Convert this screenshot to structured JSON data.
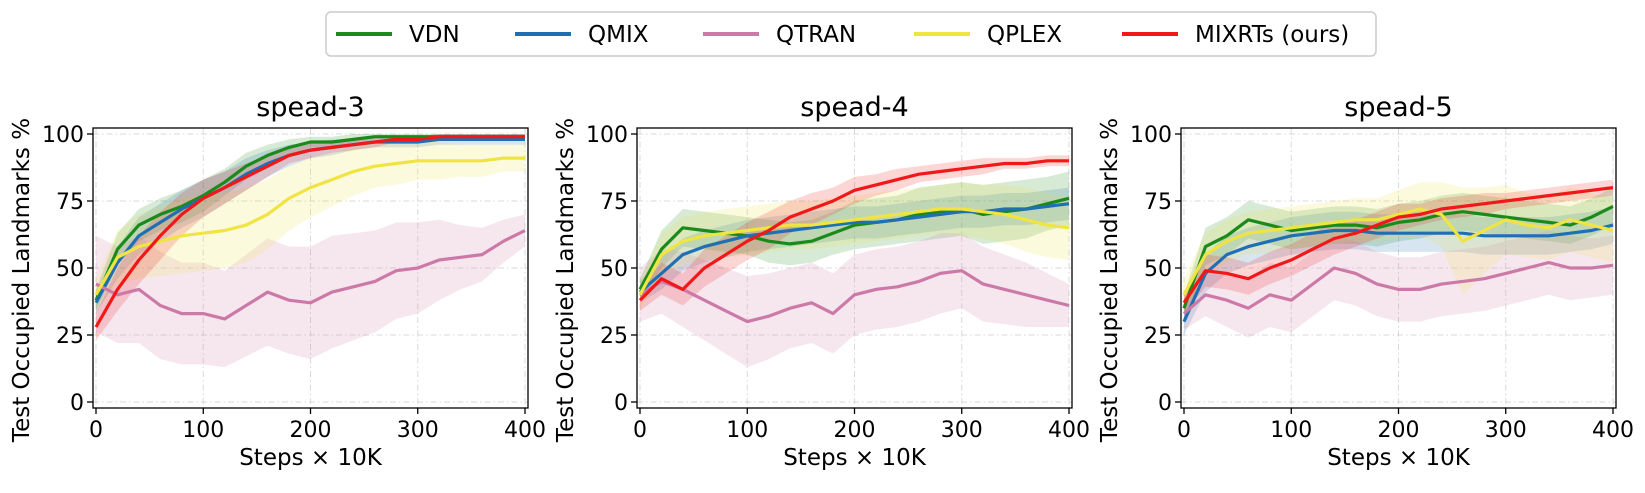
{
  "legend": {
    "placement": "top-center",
    "entries": [
      {
        "label": "VDN",
        "color": "#1a8a1a"
      },
      {
        "label": "QMIX",
        "color": "#1f6fb4"
      },
      {
        "label": "QTRAN",
        "color": "#cc79a7"
      },
      {
        "label": "QPLEX",
        "color": "#f0e442"
      },
      {
        "label": "MIXRTs (ours)",
        "color": "#f01818"
      }
    ]
  },
  "chart_data": [
    {
      "type": "line",
      "title": "spead-3",
      "xlabel": "Steps × 10K",
      "ylabel": "Test Occupied Landmarks %",
      "xlim": [
        0,
        400
      ],
      "ylim": [
        0,
        100
      ],
      "xticks": [
        0,
        100,
        200,
        300,
        400
      ],
      "yticks": [
        0,
        25,
        50,
        75,
        100
      ],
      "grid": true,
      "x": [
        0,
        20,
        40,
        60,
        80,
        100,
        120,
        140,
        160,
        180,
        200,
        220,
        240,
        260,
        280,
        300,
        320,
        340,
        360,
        380,
        400
      ],
      "series": [
        {
          "name": "VDN",
          "color": "#1a8a1a",
          "values": [
            38,
            57,
            66,
            70,
            73,
            77,
            82,
            88,
            92,
            95,
            97,
            97,
            98,
            99,
            99,
            99,
            99,
            99,
            99,
            99,
            99
          ],
          "band": [
            4,
            6,
            6,
            6,
            6,
            6,
            5,
            5,
            4,
            3,
            2,
            2,
            2,
            1,
            1,
            1,
            1,
            1,
            1,
            1,
            1
          ]
        },
        {
          "name": "QMIX",
          "color": "#1f6fb4",
          "values": [
            37,
            52,
            62,
            67,
            72,
            76,
            80,
            85,
            89,
            92,
            94,
            95,
            96,
            97,
            97,
            97,
            98,
            98,
            98,
            98,
            98
          ],
          "band": [
            4,
            6,
            7,
            7,
            7,
            7,
            6,
            6,
            5,
            4,
            3,
            3,
            2,
            2,
            2,
            2,
            2,
            2,
            2,
            2,
            2
          ]
        },
        {
          "name": "QTRAN",
          "color": "#cc79a7",
          "values": [
            44,
            40,
            42,
            36,
            33,
            33,
            31,
            36,
            41,
            38,
            37,
            41,
            43,
            45,
            49,
            50,
            53,
            54,
            55,
            60,
            64
          ],
          "band": [
            18,
            18,
            20,
            20,
            19,
            19,
            18,
            19,
            20,
            20,
            21,
            21,
            20,
            19,
            18,
            17,
            15,
            12,
            10,
            8,
            6
          ]
        },
        {
          "name": "QPLEX",
          "color": "#f0e442",
          "values": [
            40,
            54,
            58,
            60,
            62,
            63,
            64,
            66,
            70,
            76,
            80,
            83,
            86,
            88,
            89,
            90,
            90,
            90,
            90,
            91,
            91
          ],
          "band": [
            6,
            10,
            12,
            13,
            14,
            14,
            14,
            14,
            13,
            12,
            11,
            10,
            9,
            8,
            8,
            7,
            7,
            6,
            6,
            5,
            5
          ]
        },
        {
          "name": "MIXRTs (ours)",
          "color": "#f01818",
          "values": [
            28,
            42,
            53,
            62,
            70,
            76,
            80,
            84,
            88,
            92,
            94,
            95,
            96,
            97,
            98,
            98,
            99,
            99,
            99,
            99,
            99
          ],
          "band": [
            5,
            8,
            9,
            9,
            8,
            7,
            6,
            5,
            4,
            3,
            3,
            2,
            2,
            2,
            1,
            1,
            1,
            1,
            1,
            1,
            1
          ]
        }
      ]
    },
    {
      "type": "line",
      "title": "spead-4",
      "xlabel": "Steps × 10K",
      "ylabel": "Test Occupied Landmarks %",
      "xlim": [
        0,
        400
      ],
      "ylim": [
        0,
        100
      ],
      "xticks": [
        0,
        100,
        200,
        300,
        400
      ],
      "yticks": [
        0,
        25,
        50,
        75,
        100
      ],
      "grid": true,
      "x": [
        0,
        20,
        40,
        60,
        80,
        100,
        120,
        140,
        160,
        180,
        200,
        220,
        240,
        260,
        280,
        300,
        320,
        340,
        360,
        380,
        400
      ],
      "series": [
        {
          "name": "VDN",
          "color": "#1a8a1a",
          "values": [
            42,
            57,
            65,
            64,
            63,
            62,
            60,
            59,
            60,
            63,
            66,
            67,
            68,
            70,
            71,
            72,
            70,
            71,
            72,
            74,
            76
          ],
          "band": [
            4,
            7,
            7,
            7,
            7,
            7,
            8,
            8,
            8,
            8,
            9,
            9,
            9,
            10,
            10,
            10,
            11,
            11,
            11,
            10,
            10
          ]
        },
        {
          "name": "QMIX",
          "color": "#1f6fb4",
          "values": [
            41,
            48,
            55,
            58,
            60,
            62,
            63,
            64,
            65,
            66,
            67,
            67,
            68,
            69,
            70,
            71,
            71,
            72,
            72,
            73,
            74
          ],
          "band": [
            4,
            6,
            6,
            6,
            6,
            6,
            6,
            6,
            6,
            6,
            6,
            6,
            6,
            6,
            6,
            6,
            6,
            6,
            6,
            6,
            6
          ]
        },
        {
          "name": "QTRAN",
          "color": "#cc79a7",
          "values": [
            40,
            45,
            42,
            38,
            34,
            30,
            32,
            35,
            37,
            33,
            40,
            42,
            43,
            45,
            48,
            49,
            44,
            42,
            40,
            38,
            36
          ],
          "band": [
            10,
            12,
            14,
            15,
            16,
            17,
            16,
            15,
            15,
            15,
            15,
            15,
            15,
            15,
            15,
            14,
            14,
            13,
            12,
            10,
            8
          ]
        },
        {
          "name": "QPLEX",
          "color": "#f0e442",
          "values": [
            40,
            55,
            60,
            62,
            63,
            64,
            65,
            66,
            66,
            67,
            68,
            69,
            70,
            71,
            72,
            72,
            71,
            70,
            68,
            66,
            65
          ],
          "band": [
            5,
            8,
            9,
            9,
            9,
            9,
            9,
            9,
            9,
            9,
            9,
            9,
            9,
            9,
            9,
            10,
            10,
            11,
            12,
            12,
            12
          ]
        },
        {
          "name": "MIXRTs (ours)",
          "color": "#f01818",
          "values": [
            38,
            46,
            42,
            50,
            55,
            60,
            64,
            69,
            72,
            75,
            79,
            81,
            83,
            85,
            86,
            87,
            88,
            89,
            89,
            90,
            90
          ],
          "band": [
            4,
            6,
            6,
            7,
            7,
            7,
            7,
            6,
            6,
            5,
            5,
            4,
            4,
            3,
            3,
            3,
            3,
            2,
            2,
            2,
            2
          ]
        }
      ]
    },
    {
      "type": "line",
      "title": "spead-5",
      "xlabel": "Steps × 10K",
      "ylabel": "Test Occupied Landmarks %",
      "xlim": [
        0,
        400
      ],
      "ylim": [
        0,
        100
      ],
      "xticks": [
        0,
        100,
        200,
        300,
        400
      ],
      "yticks": [
        0,
        25,
        50,
        75,
        100
      ],
      "grid": true,
      "x": [
        0,
        20,
        40,
        60,
        80,
        100,
        120,
        140,
        160,
        180,
        200,
        220,
        240,
        260,
        280,
        300,
        320,
        340,
        360,
        380,
        400
      ],
      "series": [
        {
          "name": "VDN",
          "color": "#1a8a1a",
          "values": [
            35,
            58,
            62,
            68,
            66,
            64,
            65,
            66,
            66,
            65,
            67,
            68,
            70,
            71,
            70,
            69,
            68,
            67,
            66,
            69,
            73
          ],
          "band": [
            5,
            7,
            7,
            7,
            7,
            7,
            7,
            7,
            7,
            7,
            7,
            7,
            7,
            7,
            7,
            7,
            7,
            7,
            7,
            7,
            7
          ]
        },
        {
          "name": "QMIX",
          "color": "#1f6fb4",
          "values": [
            30,
            48,
            55,
            58,
            60,
            62,
            63,
            64,
            64,
            63,
            63,
            63,
            63,
            63,
            62,
            62,
            62,
            62,
            63,
            64,
            66
          ],
          "band": [
            5,
            7,
            7,
            7,
            7,
            7,
            7,
            7,
            7,
            7,
            7,
            7,
            7,
            7,
            7,
            7,
            7,
            7,
            7,
            7,
            7
          ]
        },
        {
          "name": "QTRAN",
          "color": "#cc79a7",
          "values": [
            33,
            40,
            38,
            35,
            40,
            38,
            44,
            50,
            48,
            44,
            42,
            42,
            44,
            45,
            46,
            48,
            50,
            52,
            50,
            50,
            51
          ],
          "band": [
            6,
            8,
            10,
            11,
            12,
            12,
            12,
            12,
            12,
            12,
            12,
            12,
            12,
            12,
            12,
            12,
            12,
            12,
            12,
            11,
            11
          ]
        },
        {
          "name": "QPLEX",
          "color": "#f0e442",
          "values": [
            40,
            55,
            60,
            63,
            64,
            65,
            66,
            67,
            68,
            68,
            70,
            72,
            70,
            60,
            64,
            68,
            66,
            65,
            68,
            66,
            64
          ],
          "band": [
            6,
            8,
            8,
            8,
            8,
            8,
            8,
            8,
            8,
            8,
            9,
            10,
            12,
            20,
            16,
            13,
            12,
            12,
            12,
            12,
            12
          ]
        },
        {
          "name": "MIXRTs (ours)",
          "color": "#f01818",
          "values": [
            37,
            49,
            48,
            46,
            50,
            53,
            57,
            61,
            63,
            66,
            69,
            70,
            72,
            73,
            74,
            75,
            76,
            77,
            78,
            79,
            80
          ],
          "band": [
            4,
            6,
            6,
            6,
            6,
            6,
            6,
            6,
            5,
            5,
            5,
            4,
            4,
            4,
            4,
            3,
            3,
            3,
            3,
            3,
            3
          ]
        }
      ]
    }
  ]
}
